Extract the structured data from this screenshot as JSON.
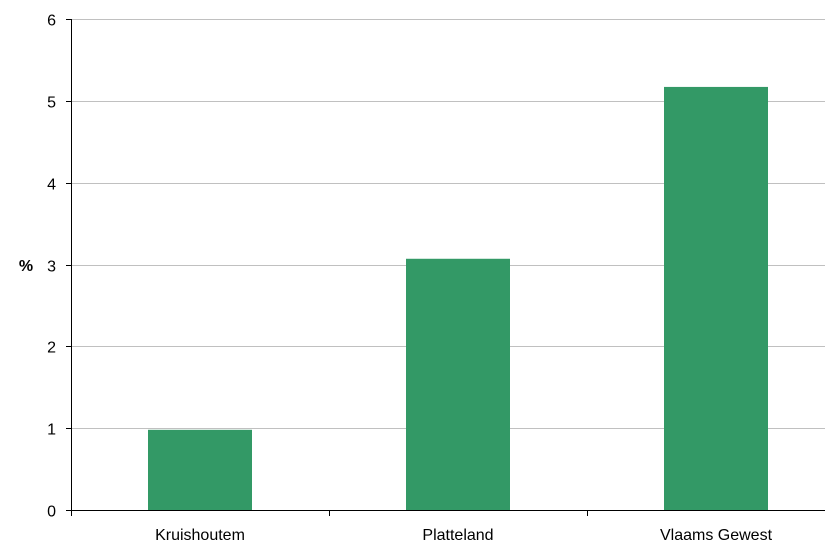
{
  "chart_data": {
    "type": "bar",
    "title": "",
    "xlabel": "",
    "ylabel": "%",
    "categories": [
      "Kruishoutem",
      "Platteland",
      "Vlaams Gewest"
    ],
    "values": [
      0.98,
      3.07,
      5.17
    ],
    "ylim": [
      0,
      6
    ],
    "yticks": [
      "0",
      "1",
      "2",
      "3",
      "4",
      "5",
      "6"
    ],
    "grid": true,
    "legend": "none",
    "colors": {
      "bar": "#339966",
      "grid": "#c0c0c0",
      "axis": "#000000"
    }
  }
}
